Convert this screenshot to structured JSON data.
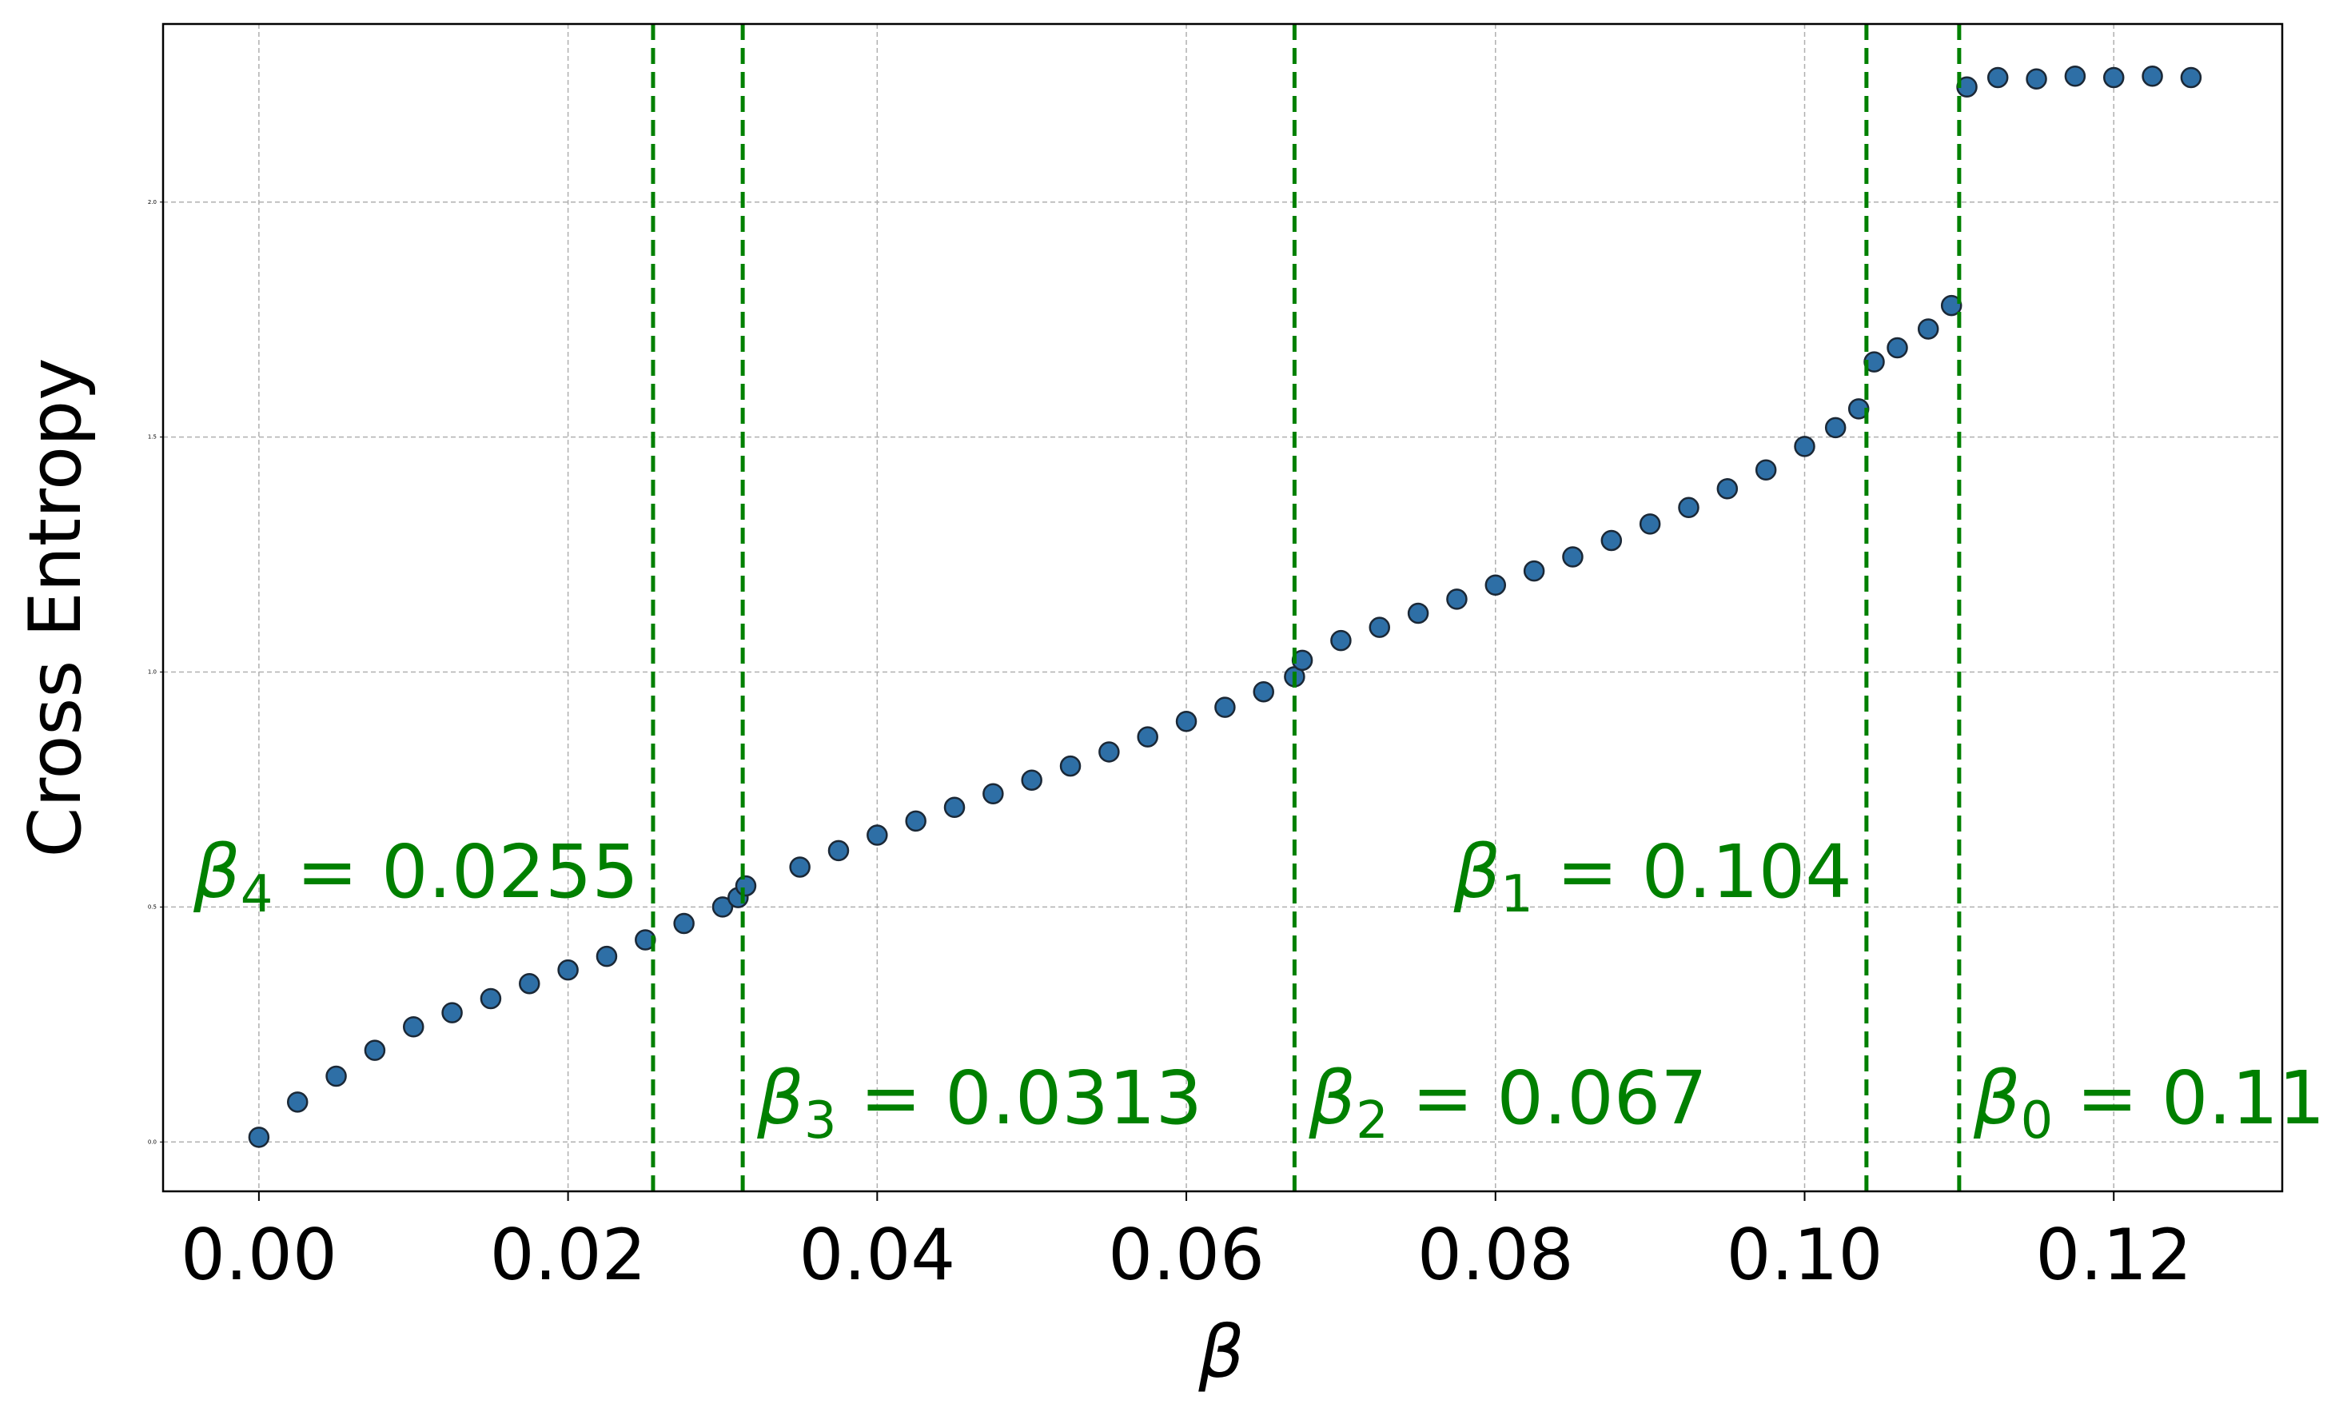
{
  "chart_data": {
    "type": "scatter",
    "xlabel": "β",
    "ylabel": "Cross Entropy",
    "xlim": [
      -0.0062,
      0.1309
    ],
    "ylim": [
      -0.105,
      2.379
    ],
    "xticks": [
      {
        "value": 0,
        "label": "0.00"
      },
      {
        "value": 0.02,
        "label": "0.02"
      },
      {
        "value": 0.04,
        "label": "0.04"
      },
      {
        "value": 0.06,
        "label": "0.06"
      },
      {
        "value": 0.08,
        "label": "0.08"
      },
      {
        "value": 0.1,
        "label": "0.10"
      },
      {
        "value": 0.12,
        "label": "0.12"
      }
    ],
    "yticks": [
      {
        "value": 0,
        "label": "0.0"
      },
      {
        "value": 0.5,
        "label": "0.5"
      },
      {
        "value": 1,
        "label": "1.0"
      },
      {
        "value": 1.5,
        "label": "1.5"
      },
      {
        "value": 2,
        "label": "2.0"
      }
    ],
    "grid": true,
    "series": [
      {
        "color": "#2e6fa6",
        "x": [
          0,
          0.0025,
          0.005,
          0.0075,
          0.01,
          0.0125,
          0.015,
          0.0175,
          0.02,
          0.0225,
          0.025,
          0.0275,
          0.03,
          0.031,
          0.0315,
          0.035,
          0.0375,
          0.04,
          0.0425,
          0.045,
          0.0475,
          0.05,
          0.0525,
          0.055,
          0.0575,
          0.06,
          0.0625,
          0.065,
          0.067,
          0.0675,
          0.07,
          0.0725,
          0.075,
          0.0775,
          0.08,
          0.0825,
          0.085,
          0.0875,
          0.09,
          0.0925,
          0.095,
          0.0975,
          0.1,
          0.102,
          0.1035,
          0.1045,
          0.106,
          0.108,
          0.1095,
          0.1105,
          0.1125,
          0.115,
          0.1175,
          0.12,
          0.1225,
          0.125
        ],
        "values": [
          0.01,
          0.085,
          0.14,
          0.195,
          0.245,
          0.275,
          0.305,
          0.337,
          0.366,
          0.395,
          0.43,
          0.465,
          0.5,
          0.52,
          0.545,
          0.585,
          0.62,
          0.653,
          0.683,
          0.712,
          0.741,
          0.77,
          0.8,
          0.83,
          0.862,
          0.895,
          0.925,
          0.958,
          0.99,
          1.025,
          1.067,
          1.095,
          1.125,
          1.155,
          1.185,
          1.215,
          1.245,
          1.28,
          1.315,
          1.35,
          1.39,
          1.43,
          1.48,
          1.52,
          1.56,
          1.66,
          1.69,
          1.73,
          1.78,
          2.245,
          2.265,
          2.262,
          2.268,
          2.265,
          2.268,
          2.265
        ]
      }
    ],
    "vlines_color": "#008000",
    "vlines": [
      {
        "x": 0.0255,
        "symbol": "β",
        "subscript": "4",
        "text": " = 0.0255"
      },
      {
        "x": 0.0313,
        "symbol": "β",
        "subscript": "3",
        "text": " = 0.0313"
      },
      {
        "x": 0.067,
        "symbol": "β",
        "subscript": "2",
        "text": " = 0.067"
      },
      {
        "x": 0.104,
        "symbol": "β",
        "subscript": "1",
        "text": " = 0.104"
      },
      {
        "x": 0.11,
        "symbol": "β",
        "subscript": "0",
        "text": " = 0.11"
      }
    ]
  }
}
